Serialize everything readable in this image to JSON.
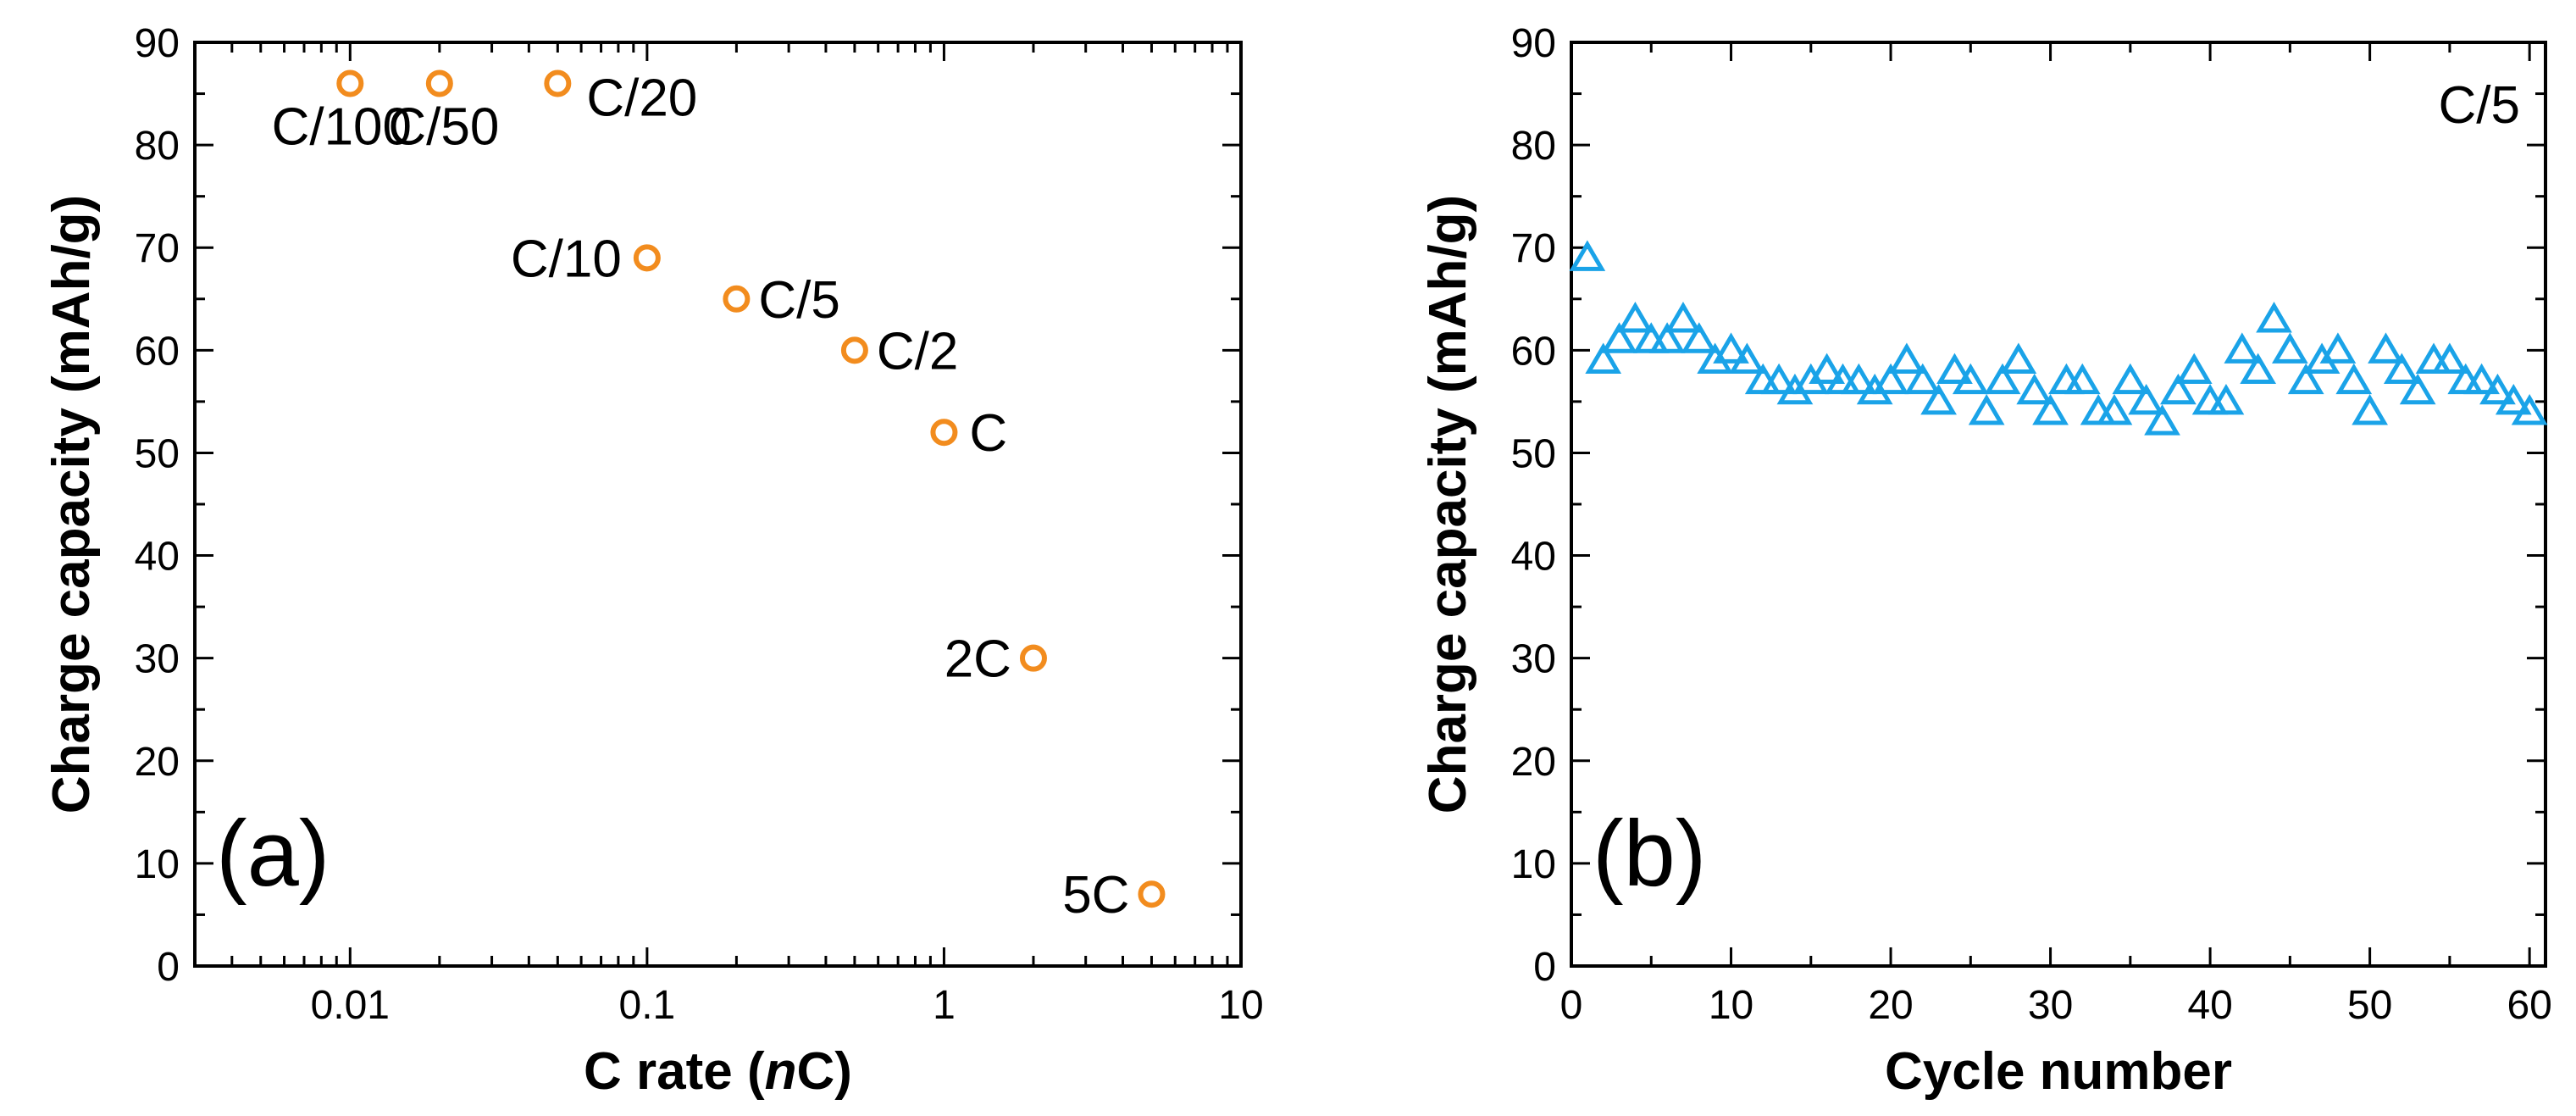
{
  "chart_data": [
    {
      "panel": "(a)",
      "type": "scatter",
      "xscale": "log",
      "xlim": [
        0.003,
        10
      ],
      "ylim": [
        0,
        90
      ],
      "xticks": [
        "0.01",
        "0.1",
        "1",
        "10"
      ],
      "yticks": [
        "0",
        "10",
        "20",
        "30",
        "40",
        "50",
        "60",
        "70",
        "80",
        "90"
      ],
      "xlabel_prefix": "C rate (",
      "xlabel_italic": "n",
      "xlabel_suffix": "C)",
      "ylabel": "Charge capacity (mAh/g)",
      "marker": "circle",
      "color": "#F28C1E",
      "points": [
        {
          "x": 0.01,
          "y": 86,
          "label": "C/100"
        },
        {
          "x": 0.02,
          "y": 86,
          "label": "C/50"
        },
        {
          "x": 0.05,
          "y": 86,
          "label": "C/20"
        },
        {
          "x": 0.1,
          "y": 69,
          "label": "C/10"
        },
        {
          "x": 0.2,
          "y": 65,
          "label": "C/5"
        },
        {
          "x": 0.5,
          "y": 60,
          "label": "C/2"
        },
        {
          "x": 1,
          "y": 52,
          "label": "C"
        },
        {
          "x": 2,
          "y": 30,
          "label": "2C"
        },
        {
          "x": 5,
          "y": 7,
          "label": "5C"
        }
      ]
    },
    {
      "panel": "(b)",
      "type": "scatter",
      "xlim": [
        0,
        61
      ],
      "ylim": [
        0,
        90
      ],
      "xticks": [
        "0",
        "10",
        "20",
        "30",
        "40",
        "50",
        "60"
      ],
      "yticks": [
        "0",
        "10",
        "20",
        "30",
        "40",
        "50",
        "60",
        "70",
        "80",
        "90"
      ],
      "xlabel": "Cycle number",
      "ylabel": "Charge capacity (mAh/g)",
      "annotation": "C/5",
      "marker": "triangle",
      "color": "#1AA3E8",
      "x": [
        1,
        2,
        3,
        4,
        5,
        6,
        7,
        8,
        9,
        10,
        11,
        12,
        13,
        14,
        15,
        16,
        17,
        18,
        19,
        20,
        21,
        22,
        23,
        24,
        25,
        26,
        27,
        28,
        29,
        30,
        31,
        32,
        33,
        34,
        35,
        36,
        37,
        38,
        39,
        40,
        41,
        42,
        43,
        44,
        45,
        46,
        47,
        48,
        49,
        50,
        51,
        52,
        53,
        54,
        55,
        56,
        57,
        58,
        59,
        60
      ],
      "y": [
        69,
        59,
        61,
        63,
        61,
        61,
        63,
        61,
        59,
        60,
        59,
        57,
        57,
        56,
        57,
        58,
        57,
        57,
        56,
        57,
        59,
        57,
        55,
        58,
        57,
        54,
        57,
        59,
        56,
        54,
        57,
        57,
        54,
        54,
        57,
        55,
        53,
        56,
        58,
        55,
        55,
        60,
        58,
        63,
        60,
        57,
        59,
        60,
        57,
        54,
        60,
        58,
        56,
        59,
        59,
        57,
        57,
        56,
        55,
        54
      ]
    }
  ]
}
